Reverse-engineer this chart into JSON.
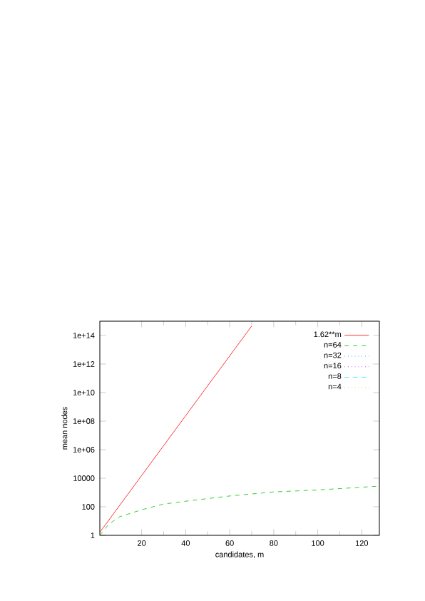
{
  "chart_data": {
    "type": "line",
    "xlabel": "candidates, m",
    "ylabel": "mean nodes",
    "log": "y",
    "xlim": [
      1,
      128
    ],
    "ylim": [
      1,
      1000000000000000.0
    ],
    "xticks": [
      20,
      40,
      60,
      80,
      100,
      120
    ],
    "yticks": [
      1,
      100,
      10000,
      {
        "value": 1000000.0,
        "label": "1e+06"
      },
      {
        "value": 100000000.0,
        "label": "1e+08"
      },
      {
        "value": 10000000000.0,
        "label": "1e+10"
      },
      {
        "value": 1000000000000.0,
        "label": "1e+12"
      },
      {
        "value": 100000000000000.0,
        "label": "1e+14"
      }
    ],
    "legend": "top right",
    "grid": false,
    "marker": "none",
    "series": [
      {
        "name": "1.62**m",
        "color": "#ff0000",
        "line_style": "solid",
        "x": [
          1,
          10,
          20,
          30,
          40,
          50,
          60,
          70
        ],
        "values": [
          1.62,
          124,
          15500,
          1930000,
          240000000,
          30000000000,
          3700000000000,
          460000000000000
        ]
      },
      {
        "name": "n=64",
        "color": "#00c000",
        "line_style": "dashed",
        "x": [
          1,
          5,
          10,
          20,
          30,
          40,
          60,
          80,
          100,
          128
        ],
        "values": [
          1,
          6,
          20,
          62,
          155,
          245,
          570,
          1100,
          1500,
          2800
        ]
      },
      {
        "name": "n=32",
        "color": "#0080ff",
        "line_style": "dotted"
      },
      {
        "name": "n=16",
        "color": "#c000ff",
        "line_style": "dotted"
      },
      {
        "name": "n=8",
        "color": "#00eeee",
        "line_style": "dashed"
      },
      {
        "name": "n=4",
        "color": "#c0c000",
        "line_style": "dotted"
      }
    ]
  }
}
